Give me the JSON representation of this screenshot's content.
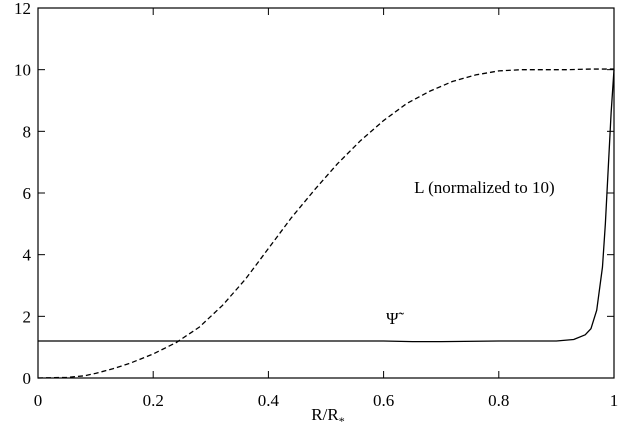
{
  "chart_data": {
    "type": "line",
    "xlabel": "R/R",
    "xlabel_sub": "*",
    "xlim": [
      0,
      1
    ],
    "ylim": [
      0,
      12
    ],
    "xticks": [
      "0",
      "0.2",
      "0.4",
      "0.6",
      "0.8",
      "1"
    ],
    "yticks": [
      "0",
      "2",
      "4",
      "6",
      "8",
      "10",
      "12"
    ],
    "grid": false,
    "annotations": [
      {
        "text": "L (normalized to 10)",
        "x": 0.775,
        "y": 6.0
      },
      {
        "text": "Ψ̃",
        "x": 0.615,
        "y": 1.75
      }
    ],
    "series": [
      {
        "style": "dashed",
        "x": [
          0.0,
          0.05,
          0.08,
          0.1,
          0.13,
          0.16,
          0.2,
          0.24,
          0.28,
          0.32,
          0.36,
          0.4,
          0.44,
          0.48,
          0.52,
          0.56,
          0.6,
          0.64,
          0.68,
          0.72,
          0.76,
          0.8,
          0.84,
          0.88,
          0.92,
          0.96,
          1.0
        ],
        "y": [
          0.0,
          0.02,
          0.07,
          0.15,
          0.3,
          0.48,
          0.78,
          1.15,
          1.65,
          2.35,
          3.2,
          4.2,
          5.2,
          6.1,
          6.95,
          7.7,
          8.35,
          8.9,
          9.3,
          9.62,
          9.83,
          9.96,
          10.0,
          10.0,
          10.0,
          10.02,
          10.02
        ]
      },
      {
        "style": "solid",
        "x": [
          0.0,
          0.1,
          0.2,
          0.3,
          0.4,
          0.5,
          0.6,
          0.65,
          0.7,
          0.8,
          0.9,
          0.93,
          0.95,
          0.96,
          0.97,
          0.98,
          0.985,
          0.99,
          0.995,
          1.0
        ],
        "y": [
          1.2,
          1.2,
          1.2,
          1.2,
          1.2,
          1.2,
          1.2,
          1.18,
          1.18,
          1.2,
          1.2,
          1.25,
          1.4,
          1.6,
          2.2,
          3.6,
          5.0,
          6.8,
          8.6,
          10.0
        ]
      }
    ]
  }
}
